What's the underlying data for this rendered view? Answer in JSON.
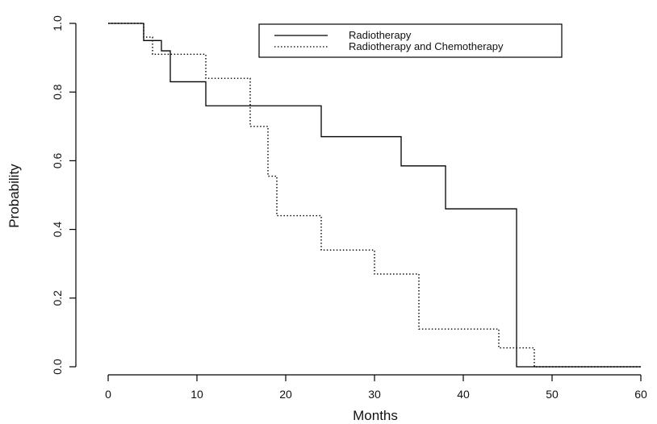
{
  "chart_data": {
    "type": "line",
    "subtype": "step",
    "title": "",
    "xlabel": "Months",
    "ylabel": "Probability",
    "xlim": [
      0,
      60
    ],
    "ylim": [
      0,
      1
    ],
    "xticks": [
      0,
      10,
      20,
      30,
      40,
      50,
      60
    ],
    "yticks": [
      0.0,
      0.2,
      0.4,
      0.6,
      0.8,
      1.0
    ],
    "ytick_labels": [
      "0.0",
      "0.2",
      "0.4",
      "0.6",
      "0.8",
      "1.0"
    ],
    "grid": false,
    "legend_position": "top-right",
    "series": [
      {
        "name": "Radiotherapy",
        "line_style": "solid",
        "color": "#000000",
        "x": [
          0,
          4,
          6,
          7,
          11,
          24,
          33,
          38,
          46,
          60
        ],
        "y": [
          1.0,
          0.95,
          0.92,
          0.83,
          0.76,
          0.67,
          0.585,
          0.46,
          0.0,
          0.0
        ]
      },
      {
        "name": "Radiotherapy and Chemotherapy",
        "line_style": "dotted",
        "color": "#000000",
        "x": [
          0,
          4,
          5,
          11,
          16,
          18,
          19,
          24,
          30,
          35,
          44,
          48,
          60
        ],
        "y": [
          1.0,
          0.96,
          0.91,
          0.84,
          0.7,
          0.555,
          0.44,
          0.34,
          0.27,
          0.11,
          0.055,
          0.0,
          0.0
        ]
      }
    ]
  }
}
